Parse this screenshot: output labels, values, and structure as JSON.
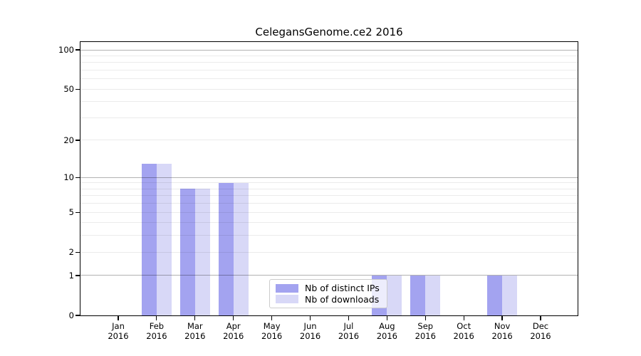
{
  "title": "CelegansGenome.ce2 2016",
  "legend": {
    "items": [
      {
        "label": "Nb of distinct IPs",
        "color": "#a3a3f0"
      },
      {
        "label": "Nb of downloads",
        "color": "#d8d8f7"
      }
    ]
  },
  "chart_data": {
    "type": "bar",
    "title": "CelegansGenome.ce2 2016",
    "x_categories": [
      {
        "month": "Jan",
        "year": "2016"
      },
      {
        "month": "Feb",
        "year": "2016"
      },
      {
        "month": "Mar",
        "year": "2016"
      },
      {
        "month": "Apr",
        "year": "2016"
      },
      {
        "month": "May",
        "year": "2016"
      },
      {
        "month": "Jun",
        "year": "2016"
      },
      {
        "month": "Jul",
        "year": "2016"
      },
      {
        "month": "Aug",
        "year": "2016"
      },
      {
        "month": "Sep",
        "year": "2016"
      },
      {
        "month": "Oct",
        "year": "2016"
      },
      {
        "month": "Nov",
        "year": "2016"
      },
      {
        "month": "Dec",
        "year": "2016"
      }
    ],
    "series": [
      {
        "name": "Nb of distinct IPs",
        "color": "#a3a3f0",
        "values": [
          0,
          13,
          8,
          9,
          0,
          0,
          0,
          1,
          1,
          0,
          1,
          0
        ]
      },
      {
        "name": "Nb of downloads",
        "color": "#d8d8f7",
        "values": [
          0,
          13,
          8,
          9,
          0,
          0,
          0,
          1,
          1,
          0,
          1,
          0
        ]
      }
    ],
    "y_scale": "log10(1+x)",
    "y_tick_values": [
      0,
      1,
      2,
      5,
      10,
      20,
      50,
      100
    ],
    "y_tick_labels": [
      "0",
      "1",
      "2",
      "5",
      "10",
      "20",
      "50",
      "100"
    ],
    "y_major_grid": [
      1,
      10,
      100
    ],
    "y_minor_grid": [
      2,
      3,
      4,
      5,
      6,
      7,
      8,
      9,
      20,
      30,
      40,
      50,
      60,
      70,
      80,
      90
    ],
    "ylim": [
      0,
      115
    ],
    "grid": true,
    "legend_position": "lower-center-inside"
  }
}
